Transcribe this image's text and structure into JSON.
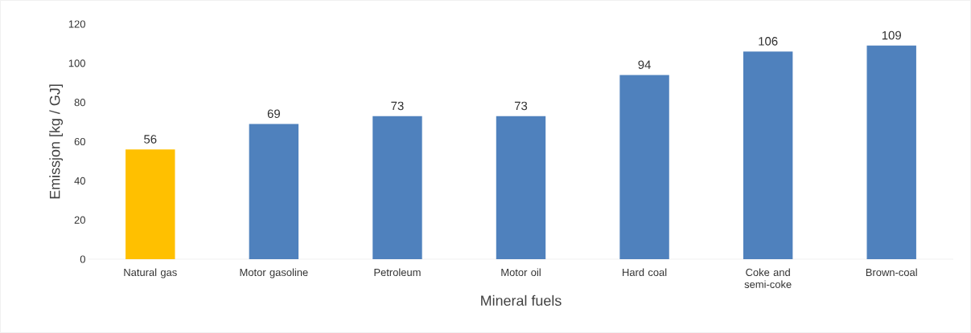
{
  "chart_data": {
    "type": "bar",
    "xlabel": "Mineral fuels",
    "ylabel": "Emissjon [kg / GJ]",
    "categories": [
      "Natural gas",
      "Motor gasoline",
      "Petroleum",
      "Motor oil",
      "Hard coal",
      "Coke and semi-coke",
      "Brown-coal"
    ],
    "values": [
      56,
      69,
      73,
      73,
      94,
      106,
      109
    ],
    "colors": [
      "#ffc000",
      "#4f81bd",
      "#4f81bd",
      "#4f81bd",
      "#4f81bd",
      "#4f81bd",
      "#4f81bd"
    ],
    "ylim": [
      0,
      120
    ],
    "yticks": [
      0,
      20,
      40,
      60,
      80,
      100,
      120
    ],
    "data_labels": true,
    "grid": false
  }
}
